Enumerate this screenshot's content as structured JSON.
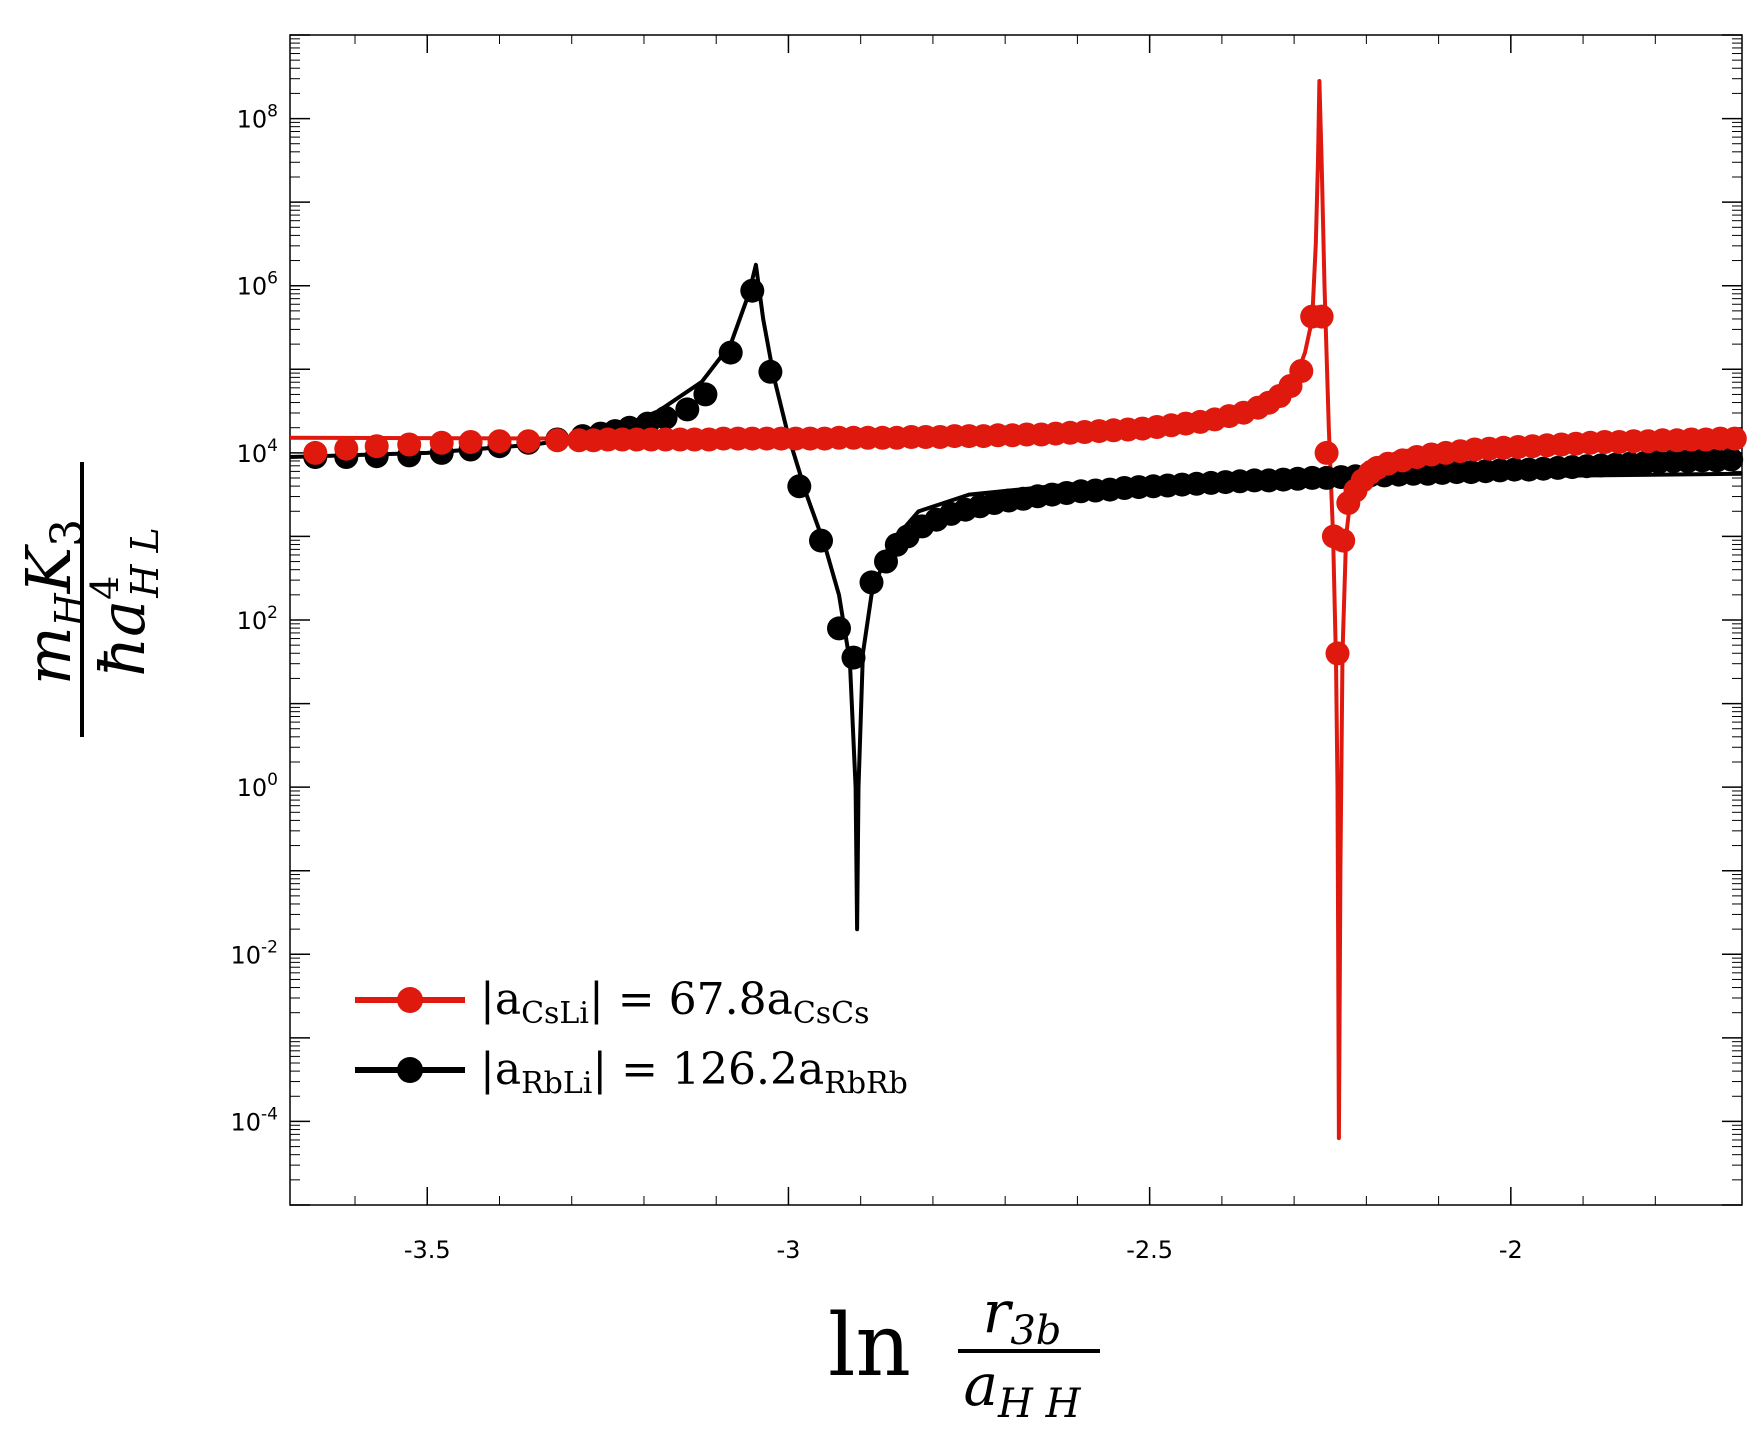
{
  "chart_data": {
    "type": "line",
    "title": "",
    "xlabel": {
      "prefix": "ln",
      "numerator": "r",
      "numerator_sub": "3b",
      "denominator": "a",
      "denominator_sub": "H H"
    },
    "ylabel": {
      "num_a": "m",
      "num_a_sub": "H",
      "num_b": "K",
      "num_b_sub": "3",
      "den_a": "ħa",
      "den_sup": "4",
      "den_sub": "H L"
    },
    "yscale": "log",
    "xlim": [
      -3.69,
      -1.68
    ],
    "ylim_log10": [
      -5.0,
      9.0
    ],
    "x_ticks": [
      {
        "value": -3.5,
        "label": "-3.5"
      },
      {
        "value": -3.0,
        "label": "-3"
      },
      {
        "value": -2.5,
        "label": "-2.5"
      },
      {
        "value": -2.0,
        "label": "-2"
      }
    ],
    "y_ticks": [
      {
        "exp": 8,
        "base": "10",
        "sup": "8"
      },
      {
        "exp": 6,
        "base": "10",
        "sup": "6"
      },
      {
        "exp": 4,
        "base": "10",
        "sup": "4"
      },
      {
        "exp": 2,
        "base": "10",
        "sup": "2"
      },
      {
        "exp": 0,
        "base": "10",
        "sup": "0"
      },
      {
        "exp": -2,
        "base": "10",
        "sup": "-2"
      },
      {
        "exp": -4,
        "base": "10",
        "sup": "-4"
      }
    ],
    "legend_position": "lower-left",
    "series": [
      {
        "name": "CsLi",
        "color": "#e0190f",
        "legend": {
          "pre": "|a",
          "sub1": "CsLi",
          "mid": "| = 67.8a",
          "sub2": "CsCs"
        },
        "line_log10": [
          [
            -3.69,
            4.18
          ],
          [
            -3.3,
            4.17
          ],
          [
            -3.0,
            4.2
          ],
          [
            -2.8,
            4.23
          ],
          [
            -2.6,
            4.28
          ],
          [
            -2.45,
            4.35
          ],
          [
            -2.38,
            4.44
          ],
          [
            -2.33,
            4.6
          ],
          [
            -2.3,
            4.85
          ],
          [
            -2.285,
            5.2
          ],
          [
            -2.275,
            5.6
          ],
          [
            -2.27,
            6.5
          ],
          [
            -2.267,
            7.5
          ],
          [
            -2.265,
            8.45
          ],
          [
            -2.262,
            7.5
          ],
          [
            -2.258,
            6.0
          ],
          [
            -2.252,
            4.3
          ],
          [
            -2.246,
            3.0
          ],
          [
            -2.242,
            1.5
          ],
          [
            -2.24,
            0.0
          ],
          [
            -2.239,
            -2.0
          ],
          [
            -2.238,
            -4.2
          ],
          [
            -2.236,
            -1.0
          ],
          [
            -2.233,
            1.6
          ],
          [
            -2.228,
            3.0
          ],
          [
            -2.22,
            3.6
          ],
          [
            -2.2,
            3.88
          ],
          [
            -2.15,
            4.02
          ],
          [
            -2.05,
            4.1
          ],
          [
            -1.9,
            4.15
          ],
          [
            -1.68,
            4.18
          ]
        ],
        "markers_log10": [
          [
            -3.655,
            4.0
          ],
          [
            -3.612,
            4.05
          ],
          [
            -3.57,
            4.08
          ],
          [
            -3.525,
            4.1
          ],
          [
            -3.48,
            4.12
          ],
          [
            -3.44,
            4.13
          ],
          [
            -3.4,
            4.14
          ],
          [
            -3.36,
            4.14
          ],
          [
            -3.32,
            4.15
          ],
          [
            -3.29,
            4.15
          ],
          [
            -3.27,
            4.15
          ],
          [
            -3.25,
            4.16
          ],
          [
            -3.23,
            4.16
          ],
          [
            -3.21,
            4.16
          ],
          [
            -3.19,
            4.16
          ],
          [
            -3.17,
            4.16
          ],
          [
            -3.15,
            4.16
          ],
          [
            -3.13,
            4.16
          ],
          [
            -3.11,
            4.16
          ],
          [
            -3.09,
            4.17
          ],
          [
            -3.07,
            4.17
          ],
          [
            -3.05,
            4.17
          ],
          [
            -3.03,
            4.17
          ],
          [
            -3.01,
            4.17
          ],
          [
            -2.99,
            4.17
          ],
          [
            -2.97,
            4.17
          ],
          [
            -2.95,
            4.17
          ],
          [
            -2.93,
            4.18
          ],
          [
            -2.91,
            4.18
          ],
          [
            -2.89,
            4.18
          ],
          [
            -2.87,
            4.18
          ],
          [
            -2.85,
            4.18
          ],
          [
            -2.83,
            4.19
          ],
          [
            -2.81,
            4.19
          ],
          [
            -2.79,
            4.19
          ],
          [
            -2.77,
            4.2
          ],
          [
            -2.75,
            4.2
          ],
          [
            -2.73,
            4.2
          ],
          [
            -2.71,
            4.21
          ],
          [
            -2.69,
            4.21
          ],
          [
            -2.67,
            4.22
          ],
          [
            -2.65,
            4.22
          ],
          [
            -2.63,
            4.23
          ],
          [
            -2.61,
            4.24
          ],
          [
            -2.59,
            4.25
          ],
          [
            -2.57,
            4.26
          ],
          [
            -2.55,
            4.27
          ],
          [
            -2.53,
            4.28
          ],
          [
            -2.51,
            4.29
          ],
          [
            -2.49,
            4.31
          ],
          [
            -2.47,
            4.33
          ],
          [
            -2.45,
            4.35
          ],
          [
            -2.43,
            4.37
          ],
          [
            -2.41,
            4.4
          ],
          [
            -2.39,
            4.44
          ],
          [
            -2.37,
            4.48
          ],
          [
            -2.35,
            4.54
          ],
          [
            -2.335,
            4.6
          ],
          [
            -2.32,
            4.68
          ],
          [
            -2.305,
            4.8
          ],
          [
            -2.29,
            4.98
          ],
          [
            -2.275,
            5.63
          ],
          [
            -2.262,
            5.63
          ],
          [
            -2.255,
            4.0
          ],
          [
            -2.245,
            3.0
          ],
          [
            -2.24,
            1.6
          ],
          [
            -2.232,
            2.95
          ],
          [
            -2.225,
            3.4
          ],
          [
            -2.215,
            3.55
          ],
          [
            -2.205,
            3.67
          ],
          [
            -2.195,
            3.76
          ],
          [
            -2.185,
            3.82
          ],
          [
            -2.17,
            3.87
          ],
          [
            -2.15,
            3.91
          ],
          [
            -2.13,
            3.95
          ],
          [
            -2.11,
            3.98
          ],
          [
            -2.09,
            4.0
          ],
          [
            -2.07,
            4.02
          ],
          [
            -2.05,
            4.04
          ],
          [
            -2.03,
            4.05
          ],
          [
            -2.01,
            4.06
          ],
          [
            -1.99,
            4.07
          ],
          [
            -1.97,
            4.08
          ],
          [
            -1.95,
            4.09
          ],
          [
            -1.93,
            4.1
          ],
          [
            -1.91,
            4.11
          ],
          [
            -1.89,
            4.12
          ],
          [
            -1.87,
            4.13
          ],
          [
            -1.85,
            4.13
          ],
          [
            -1.83,
            4.14
          ],
          [
            -1.81,
            4.14
          ],
          [
            -1.79,
            4.15
          ],
          [
            -1.77,
            4.15
          ],
          [
            -1.75,
            4.16
          ],
          [
            -1.73,
            4.16
          ],
          [
            -1.71,
            4.17
          ],
          [
            -1.69,
            4.17
          ]
        ]
      },
      {
        "name": "RbLi",
        "color": "#000000",
        "legend": {
          "pre": "|a",
          "sub1": "RbLi",
          "mid": "| = 126.2a",
          "sub2": "RbRb"
        },
        "line_log10": [
          [
            -3.69,
            3.95
          ],
          [
            -3.5,
            4.0
          ],
          [
            -3.35,
            4.1
          ],
          [
            -3.25,
            4.25
          ],
          [
            -3.18,
            4.5
          ],
          [
            -3.12,
            4.85
          ],
          [
            -3.08,
            5.3
          ],
          [
            -3.055,
            5.9
          ],
          [
            -3.045,
            6.25
          ],
          [
            -3.035,
            5.6
          ],
          [
            -3.02,
            4.9
          ],
          [
            -3.0,
            4.2
          ],
          [
            -2.975,
            3.5
          ],
          [
            -2.95,
            2.9
          ],
          [
            -2.93,
            2.3
          ],
          [
            -2.915,
            1.5
          ],
          [
            -2.907,
            0.0
          ],
          [
            -2.905,
            -1.7
          ],
          [
            -2.903,
            0.0
          ],
          [
            -2.897,
            1.6
          ],
          [
            -2.885,
            2.3
          ],
          [
            -2.86,
            2.9
          ],
          [
            -2.82,
            3.3
          ],
          [
            -2.75,
            3.5
          ],
          [
            -2.6,
            3.63
          ],
          [
            -2.4,
            3.67
          ],
          [
            -2.2,
            3.7
          ],
          [
            -2.0,
            3.72
          ],
          [
            -1.68,
            3.75
          ]
        ],
        "markers_log10": [
          [
            -3.655,
            3.95
          ],
          [
            -3.612,
            3.95
          ],
          [
            -3.57,
            3.96
          ],
          [
            -3.525,
            3.97
          ],
          [
            -3.48,
            4.0
          ],
          [
            -3.44,
            4.04
          ],
          [
            -3.4,
            4.08
          ],
          [
            -3.36,
            4.12
          ],
          [
            -3.32,
            4.16
          ],
          [
            -3.285,
            4.2
          ],
          [
            -3.26,
            4.23
          ],
          [
            -3.24,
            4.26
          ],
          [
            -3.22,
            4.3
          ],
          [
            -3.195,
            4.35
          ],
          [
            -3.17,
            4.42
          ],
          [
            -3.14,
            4.52
          ],
          [
            -3.115,
            4.7
          ],
          [
            -3.08,
            5.2
          ],
          [
            -3.05,
            5.94
          ],
          [
            -3.025,
            4.97
          ],
          [
            -2.985,
            3.6
          ],
          [
            -2.955,
            2.95
          ],
          [
            -2.93,
            1.9
          ],
          [
            -2.91,
            1.55
          ],
          [
            -2.885,
            2.45
          ],
          [
            -2.865,
            2.7
          ],
          [
            -2.85,
            2.9
          ],
          [
            -2.835,
            3.0
          ],
          [
            -2.815,
            3.12
          ],
          [
            -2.795,
            3.2
          ],
          [
            -2.775,
            3.27
          ],
          [
            -2.755,
            3.32
          ],
          [
            -2.735,
            3.36
          ],
          [
            -2.715,
            3.4
          ],
          [
            -2.695,
            3.43
          ],
          [
            -2.675,
            3.45
          ],
          [
            -2.655,
            3.48
          ],
          [
            -2.635,
            3.5
          ],
          [
            -2.615,
            3.52
          ],
          [
            -2.595,
            3.54
          ],
          [
            -2.575,
            3.55
          ],
          [
            -2.555,
            3.56
          ],
          [
            -2.535,
            3.58
          ],
          [
            -2.515,
            3.59
          ],
          [
            -2.495,
            3.6
          ],
          [
            -2.475,
            3.61
          ],
          [
            -2.455,
            3.62
          ],
          [
            -2.435,
            3.63
          ],
          [
            -2.415,
            3.64
          ],
          [
            -2.395,
            3.65
          ],
          [
            -2.375,
            3.66
          ],
          [
            -2.355,
            3.67
          ],
          [
            -2.335,
            3.67
          ],
          [
            -2.315,
            3.68
          ],
          [
            -2.295,
            3.69
          ],
          [
            -2.275,
            3.7
          ],
          [
            -2.255,
            3.7
          ],
          [
            -2.235,
            3.71
          ],
          [
            -2.215,
            3.72
          ],
          [
            -2.195,
            3.73
          ],
          [
            -2.175,
            3.73
          ],
          [
            -2.155,
            3.74
          ],
          [
            -2.135,
            3.75
          ],
          [
            -2.115,
            3.75
          ],
          [
            -2.095,
            3.76
          ],
          [
            -2.075,
            3.77
          ],
          [
            -2.055,
            3.77
          ],
          [
            -2.035,
            3.78
          ],
          [
            -2.015,
            3.79
          ],
          [
            -1.995,
            3.8
          ],
          [
            -1.975,
            3.8
          ],
          [
            -1.955,
            3.81
          ],
          [
            -1.935,
            3.82
          ],
          [
            -1.915,
            3.83
          ],
          [
            -1.895,
            3.84
          ],
          [
            -1.875,
            3.85
          ],
          [
            -1.855,
            3.86
          ],
          [
            -1.835,
            3.87
          ],
          [
            -1.815,
            3.88
          ],
          [
            -1.795,
            3.89
          ],
          [
            -1.775,
            3.9
          ],
          [
            -1.755,
            3.9
          ],
          [
            -1.735,
            3.91
          ],
          [
            -1.715,
            3.91
          ],
          [
            -1.695,
            3.92
          ]
        ]
      }
    ]
  }
}
